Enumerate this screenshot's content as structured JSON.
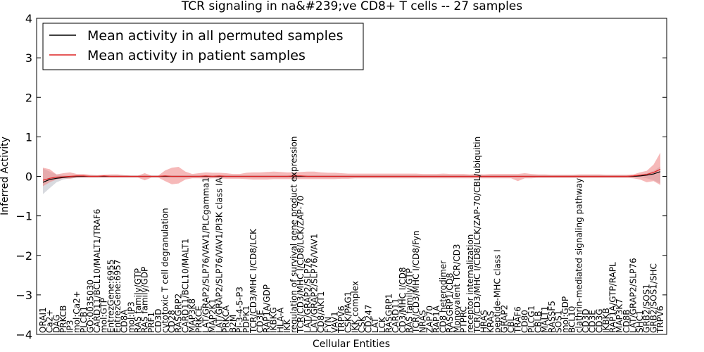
{
  "chart_data": {
    "type": "line",
    "title": "TCR signaling in na&#239;ve CD8+ T cells -- 27 samples",
    "xlabel": "Cellular Entities",
    "ylabel": "Inferred Activity",
    "ylim": [
      -4,
      4
    ],
    "yticks": [
      "4",
      "3",
      "2",
      "1",
      "0",
      "−1",
      "−2",
      "−3",
      "−4"
    ],
    "yticks_values": [
      4,
      3,
      2,
      1,
      0,
      -1,
      -2,
      -3,
      -4
    ],
    "legend": {
      "position": "top-left",
      "entries": [
        {
          "label": "Mean activity in all permuted samples",
          "color": "#000000"
        },
        {
          "label": "Mean activity in patient samples",
          "color": "#dd2222"
        }
      ]
    },
    "categories": [
      "ORAI1",
      "Ca2+",
      "DAG",
      "PRKCB",
      "IP3",
      "mol:Ca2+",
      "PLCB1",
      "GO:0035030",
      "CARD11/BCL10/MALT1/TRAF6",
      "mol:GTP",
      "EntrezGene:6955",
      "EntrezGene:6957",
      "CD8A",
      "mol:IP3",
      "RAS family/GTP",
      "RAS family/GDP",
      "PRF1",
      "CD3D",
      "cytotoxic T cell degranulation",
      "CD28",
      "RASGRP2",
      "CARD11/BCL10/MALT1",
      "MAP3K8",
      "PRKCE",
      "LAT/GRAP2/SLP76/VAV1/PLCgamma1",
      "MAP2K1",
      "LAT/GRAP2/SLP76/VAV1/PI3K class IA",
      "PRKCA",
      "B2M",
      "PI-3-4-5-P3",
      "PDPK1",
      "TCR/CD3/MHC I/CD8/LCK",
      "CD3E",
      "RAP1A/GDP",
      "IKBKG",
      "HLA-A",
      "IKK",
      "regulation of survival gene product expression",
      "TCR/CD3/MHC I/CD8/LCK/ZAP-70",
      "LAT/GRAP2/SLP76",
      "LAT/GRAP2/SLP76/VAV1",
      "CD8/AKT1",
      "FYN",
      "VAV1",
      "TRPV6",
      "CSK/PAG1",
      "IKK complex",
      "CSK",
      "CD247",
      "LAT",
      "LCK",
      "RASGRP1",
      "CARD11",
      "CD3/MHC I/CD8",
      "RAS family/GTP",
      "TCR/CD3/MHC I/CD8/Fyn",
      "NRAS",
      "ZAP70",
      "RAP1A",
      "CD8 heterodimer",
      "RASGRP1/CD8",
      "Monovalent TCR/CD3",
      "PTPRC",
      "receptor internalization",
      "TCR/CD3/MHC I/CD8/LCK/ZAP-70/CBL/ubiquitin",
      "HRAS",
      "KRAS",
      "peptide-MHC class I",
      "GRAP2",
      "CBL",
      "TRAF6",
      "CD80",
      "PLCG1",
      "CBLB",
      "MALT1",
      "RASSF5",
      "SOS1",
      "mol:GDP",
      "BCL10",
      "clathrin-mediated signaling pathway",
      "CD3D",
      "CD3E",
      "CD3G",
      "IKBKB",
      "RAP1A/GTP/RAPL",
      "MAP3K7",
      "CD8B",
      "LAT/GRAP2/SLP76",
      "SHC1",
      "GRB2/SOS1",
      "GRB2/SOS1/SHC",
      "TRPV6"
    ],
    "series": [
      {
        "name": "Mean activity in all permuted samples",
        "color": "#000000",
        "values": [
          -0.15,
          -0.08,
          -0.05,
          -0.03,
          -0.01,
          0.0,
          0.0,
          0.0,
          0.0,
          0.0,
          0.0,
          0.0,
          0.0,
          0.0,
          0.0,
          0.0,
          0.0,
          0.0,
          0.0,
          0.0,
          0.0,
          0.0,
          0.0,
          0.0,
          0.0,
          0.0,
          0.0,
          0.0,
          0.0,
          0.0,
          0.0,
          0.0,
          0.0,
          0.0,
          0.0,
          0.0,
          0.0,
          0.0,
          0.0,
          0.0,
          0.0,
          0.0,
          0.0,
          0.0,
          0.0,
          0.0,
          0.0,
          0.0,
          0.0,
          0.0,
          0.0,
          0.0,
          0.0,
          0.0,
          0.0,
          0.0,
          0.0,
          0.0,
          0.0,
          0.0,
          0.0,
          0.0,
          0.0,
          0.0,
          0.0,
          0.0,
          0.0,
          0.0,
          0.0,
          0.0,
          0.0,
          0.0,
          0.0,
          0.0,
          0.0,
          0.0,
          0.0,
          0.0,
          0.0,
          0.0,
          0.0,
          0.0,
          0.0,
          0.0,
          0.0,
          0.0,
          0.0,
          0.0,
          0.01,
          0.03,
          0.06,
          0.12
        ],
        "band_upper": [
          0.2,
          0.12,
          0.05,
          0.03,
          0.02,
          0.02,
          0.01,
          0.01,
          0.01,
          0.01,
          0.01,
          0.01,
          0.01,
          0.01,
          0.01,
          0.01,
          0.01,
          0.01,
          0.01,
          0.01,
          0.01,
          0.01,
          0.01,
          0.01,
          0.01,
          0.01,
          0.01,
          0.01,
          0.01,
          0.01,
          0.01,
          0.01,
          0.01,
          0.01,
          0.01,
          0.01,
          0.01,
          0.01,
          0.01,
          0.01,
          0.01,
          0.01,
          0.01,
          0.01,
          0.01,
          0.01,
          0.01,
          0.01,
          0.01,
          0.01,
          0.01,
          0.01,
          0.01,
          0.01,
          0.01,
          0.01,
          0.01,
          0.01,
          0.01,
          0.01,
          0.01,
          0.01,
          0.01,
          0.01,
          0.01,
          0.01,
          0.01,
          0.01,
          0.01,
          0.01,
          0.01,
          0.01,
          0.01,
          0.01,
          0.01,
          0.01,
          0.01,
          0.01,
          0.01,
          0.01,
          0.01,
          0.01,
          0.01,
          0.01,
          0.01,
          0.01,
          0.01,
          0.02,
          0.04,
          0.08,
          0.14,
          0.25
        ],
        "band_lower": [
          -0.45,
          -0.3,
          -0.15,
          -0.08,
          -0.05,
          -0.04,
          -0.03,
          -0.03,
          -0.03,
          -0.03,
          -0.03,
          -0.03,
          -0.03,
          -0.03,
          -0.03,
          -0.03,
          -0.03,
          -0.03,
          -0.03,
          -0.03,
          -0.03,
          -0.03,
          -0.03,
          -0.03,
          -0.03,
          -0.03,
          -0.03,
          -0.03,
          -0.03,
          -0.03,
          -0.03,
          -0.03,
          -0.03,
          -0.03,
          -0.03,
          -0.03,
          -0.03,
          -0.03,
          -0.03,
          -0.03,
          -0.03,
          -0.03,
          -0.03,
          -0.03,
          -0.03,
          -0.03,
          -0.03,
          -0.03,
          -0.03,
          -0.03,
          -0.03,
          -0.03,
          -0.03,
          -0.03,
          -0.03,
          -0.03,
          -0.03,
          -0.03,
          -0.03,
          -0.03,
          -0.03,
          -0.03,
          -0.03,
          -0.03,
          -0.03,
          -0.03,
          -0.03,
          -0.03,
          -0.03,
          -0.03,
          -0.03,
          -0.03,
          -0.03,
          -0.03,
          -0.03,
          -0.03,
          -0.03,
          -0.03,
          -0.03,
          -0.03,
          -0.03,
          -0.03,
          -0.03,
          -0.03,
          -0.03,
          -0.03,
          -0.03,
          -0.02,
          -0.02,
          -0.05,
          -0.1,
          -0.18
        ]
      },
      {
        "name": "Mean activity in patient samples",
        "color": "#dd2222",
        "values": [
          -0.1,
          -0.05,
          -0.02,
          -0.01,
          0.0,
          0.01,
          0.01,
          0.0,
          0.0,
          0.01,
          0.0,
          0.0,
          0.0,
          0.0,
          0.0,
          0.0,
          0.0,
          0.0,
          0.01,
          0.0,
          0.0,
          0.0,
          0.0,
          0.0,
          0.01,
          0.0,
          0.01,
          0.0,
          0.0,
          0.0,
          0.0,
          0.0,
          0.0,
          0.0,
          0.0,
          0.0,
          0.0,
          0.01,
          0.01,
          0.0,
          0.0,
          0.0,
          0.0,
          0.0,
          0.0,
          0.0,
          0.0,
          0.0,
          0.0,
          0.0,
          0.0,
          0.0,
          0.0,
          0.0,
          0.0,
          0.0,
          0.0,
          0.0,
          0.0,
          0.0,
          0.0,
          0.0,
          0.0,
          0.0,
          0.0,
          0.0,
          0.0,
          0.0,
          0.0,
          0.0,
          0.0,
          0.0,
          0.0,
          0.0,
          0.0,
          0.0,
          0.0,
          0.0,
          0.0,
          0.0,
          0.0,
          0.0,
          0.0,
          0.0,
          0.0,
          0.0,
          0.0,
          0.01,
          0.03,
          0.05,
          0.1,
          0.18
        ],
        "band_upper": [
          0.22,
          0.18,
          0.05,
          0.08,
          0.1,
          0.06,
          0.06,
          0.04,
          0.03,
          0.04,
          0.05,
          0.05,
          0.03,
          0.02,
          0.02,
          0.08,
          0.02,
          0.02,
          0.15,
          0.22,
          0.24,
          0.12,
          0.06,
          0.08,
          0.1,
          0.09,
          0.09,
          0.08,
          0.06,
          0.06,
          0.09,
          0.1,
          0.1,
          0.11,
          0.12,
          0.11,
          0.1,
          0.1,
          0.11,
          0.12,
          0.12,
          0.1,
          0.09,
          0.09,
          0.08,
          0.07,
          0.07,
          0.07,
          0.07,
          0.07,
          0.07,
          0.07,
          0.07,
          0.07,
          0.07,
          0.07,
          0.06,
          0.06,
          0.06,
          0.07,
          0.06,
          0.06,
          0.06,
          0.05,
          0.06,
          0.05,
          0.06,
          0.06,
          0.06,
          0.06,
          0.06,
          0.08,
          0.06,
          0.05,
          0.05,
          0.04,
          0.04,
          0.04,
          0.04,
          0.05,
          0.05,
          0.05,
          0.05,
          0.04,
          0.04,
          0.04,
          0.04,
          0.05,
          0.1,
          0.14,
          0.3,
          0.6
        ],
        "band_lower": [
          -0.25,
          -0.15,
          -0.08,
          -0.05,
          -0.06,
          -0.03,
          -0.03,
          -0.03,
          -0.03,
          -0.03,
          -0.03,
          -0.03,
          -0.03,
          -0.03,
          -0.03,
          -0.1,
          -0.03,
          -0.03,
          -0.12,
          -0.2,
          -0.18,
          -0.08,
          -0.05,
          -0.05,
          -0.06,
          -0.05,
          -0.05,
          -0.06,
          -0.06,
          -0.06,
          -0.07,
          -0.08,
          -0.08,
          -0.08,
          -0.07,
          -0.07,
          -0.07,
          -0.07,
          -0.07,
          -0.07,
          -0.07,
          -0.07,
          -0.07,
          -0.07,
          -0.06,
          -0.06,
          -0.05,
          -0.05,
          -0.05,
          -0.05,
          -0.05,
          -0.05,
          -0.05,
          -0.05,
          -0.05,
          -0.05,
          -0.05,
          -0.05,
          -0.05,
          -0.05,
          -0.05,
          -0.05,
          -0.05,
          -0.05,
          -0.05,
          -0.05,
          -0.05,
          -0.05,
          -0.05,
          -0.05,
          -0.12,
          -0.05,
          -0.05,
          -0.04,
          -0.04,
          -0.04,
          -0.04,
          -0.04,
          -0.04,
          -0.04,
          -0.04,
          -0.04,
          -0.04,
          -0.04,
          -0.04,
          -0.04,
          -0.04,
          -0.05,
          -0.08,
          -0.15,
          -0.12,
          -0.22
        ]
      }
    ]
  }
}
